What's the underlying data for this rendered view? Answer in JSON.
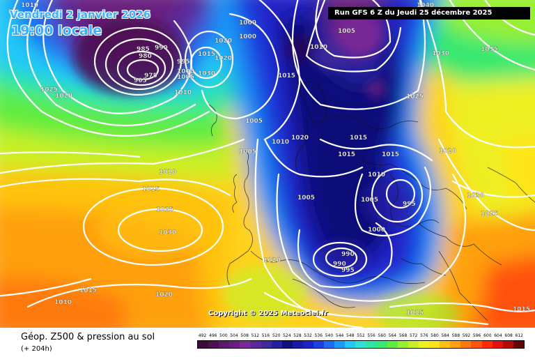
{
  "header": {
    "date_label": "Vendredi 2 janvier 2026",
    "time_label": "19:00 locale",
    "run_info": "Run GFS 6 Z du Jeudi 25 décembre 2025"
  },
  "copyright": "Copyright © 2025 Meteociel.fr",
  "legend": {
    "parameter": "Géop. Z500 & pression au sol",
    "lead_time": "(+ 204h)",
    "scale_values": [
      "492",
      "496",
      "500",
      "504",
      "508",
      "512",
      "516",
      "520",
      "524",
      "528",
      "532",
      "536",
      "540",
      "544",
      "548",
      "552",
      "556",
      "560",
      "564",
      "568",
      "572",
      "576",
      "580",
      "584",
      "588",
      "592",
      "596",
      "600",
      "604",
      "608",
      "612"
    ],
    "scale_colors": [
      "#3a0a3a",
      "#4a1050",
      "#5a1a6a",
      "#6a2080",
      "#7a2a98",
      "#5a2a9a",
      "#3e2a9c",
      "#24209e",
      "#10107a",
      "#1a1aa8",
      "#2020c8",
      "#1e40e0",
      "#1e6cf0",
      "#1e9af8",
      "#22c8f8",
      "#2ee0d8",
      "#2ee6a0",
      "#38e870",
      "#60ec40",
      "#98f030",
      "#c8f028",
      "#eef020",
      "#ffe41a",
      "#ffc210",
      "#ffa010",
      "#ff7a0c",
      "#ff520a",
      "#ff2a08",
      "#e41010",
      "#b40a0a",
      "#600606"
    ]
  },
  "isobars": [
    {
      "value": "1010",
      "x": "30",
      "y": "3"
    },
    {
      "value": "985",
      "x": "196",
      "y": "66"
    },
    {
      "value": "990",
      "x": "222",
      "y": "64"
    },
    {
      "value": "980",
      "x": "199",
      "y": "76"
    },
    {
      "value": "975",
      "x": "207",
      "y": "104"
    },
    {
      "value": "965",
      "x": "192",
      "y": "111"
    },
    {
      "value": "995",
      "x": "254",
      "y": "84"
    },
    {
      "value": "1000",
      "x": "254",
      "y": "98"
    },
    {
      "value": "1005",
      "x": "254",
      "y": "106"
    },
    {
      "value": "1010",
      "x": "250",
      "y": "128"
    },
    {
      "value": "1025",
      "x": "58",
      "y": "124"
    },
    {
      "value": "1020",
      "x": "79",
      "y": "133"
    },
    {
      "value": "1020",
      "x": "308",
      "y": "54"
    },
    {
      "value": "1015",
      "x": "284",
      "y": "73"
    },
    {
      "value": "1020",
      "x": "308",
      "y": "79"
    },
    {
      "value": "1030",
      "x": "284",
      "y": "101"
    },
    {
      "value": "1000",
      "x": "343",
      "y": "28"
    },
    {
      "value": "1000",
      "x": "343",
      "y": "48"
    },
    {
      "value": "1010",
      "x": "445",
      "y": "63"
    },
    {
      "value": "1005",
      "x": "485",
      "y": "40"
    },
    {
      "value": "1015",
      "x": "399",
      "y": "104"
    },
    {
      "value": "1030",
      "x": "620",
      "y": "72"
    },
    {
      "value": "1035",
      "x": "690",
      "y": "66"
    },
    {
      "value": "1025",
      "x": "583",
      "y": "134"
    },
    {
      "value": "1005",
      "x": "352",
      "y": "169"
    },
    {
      "value": "1010",
      "x": "390",
      "y": "199"
    },
    {
      "value": "1020",
      "x": "418",
      "y": "193"
    },
    {
      "value": "1005",
      "x": "343",
      "y": "213"
    },
    {
      "value": "1015",
      "x": "502",
      "y": "193"
    },
    {
      "value": "1015",
      "x": "485",
      "y": "217"
    },
    {
      "value": "1015",
      "x": "548",
      "y": "217"
    },
    {
      "value": "1020",
      "x": "630",
      "y": "212"
    },
    {
      "value": "1010",
      "x": "228",
      "y": "242"
    },
    {
      "value": "1015",
      "x": "204",
      "y": "267"
    },
    {
      "value": "1010",
      "x": "528",
      "y": "246"
    },
    {
      "value": "1005",
      "x": "427",
      "y": "279"
    },
    {
      "value": "1005",
      "x": "518",
      "y": "282"
    },
    {
      "value": "995",
      "x": "578",
      "y": "288"
    },
    {
      "value": "1030",
      "x": "670",
      "y": "276"
    },
    {
      "value": "1025",
      "x": "224",
      "y": "296"
    },
    {
      "value": "1025",
      "x": "690",
      "y": "302"
    },
    {
      "value": "1000",
      "x": "528",
      "y": "325"
    },
    {
      "value": "1030",
      "x": "228",
      "y": "329"
    },
    {
      "value": "990",
      "x": "490",
      "y": "360"
    },
    {
      "value": "990",
      "x": "478",
      "y": "374"
    },
    {
      "value": "995",
      "x": "490",
      "y": "383"
    },
    {
      "value": "1020",
      "x": "378",
      "y": "369"
    },
    {
      "value": "1015",
      "x": "114",
      "y": "412"
    },
    {
      "value": "1020",
      "x": "223",
      "y": "418"
    },
    {
      "value": "1010",
      "x": "78",
      "y": "429"
    },
    {
      "value": "1015",
      "x": "583",
      "y": "444"
    },
    {
      "value": "1015",
      "x": "736",
      "y": "439"
    },
    {
      "value": "1040",
      "x": "598",
      "y": "3"
    }
  ]
}
